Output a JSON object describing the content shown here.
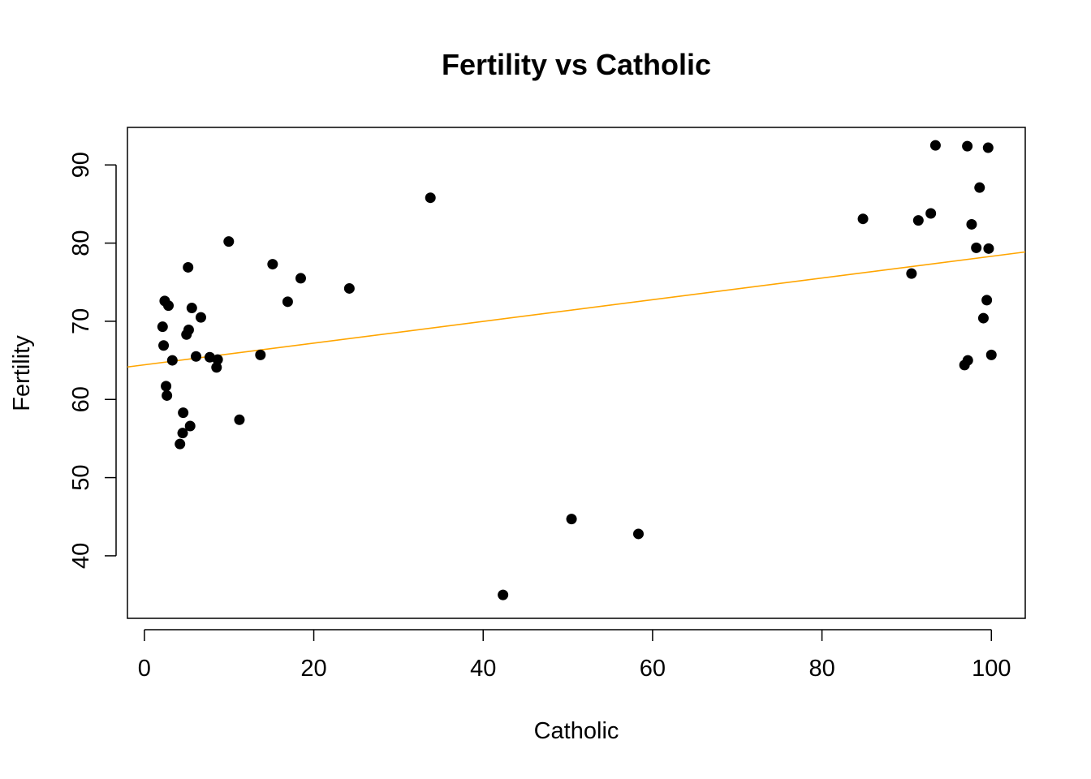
{
  "chart_data": {
    "type": "scatter",
    "title": "Fertility vs Catholic",
    "xlabel": "Catholic",
    "ylabel": "Fertility",
    "xlim": [
      -2.0,
      104.0
    ],
    "ylim": [
      32.0,
      94.8
    ],
    "xticks": [
      0,
      20,
      40,
      60,
      80,
      100
    ],
    "yticks": [
      40,
      50,
      60,
      70,
      80,
      90
    ],
    "grid": false,
    "point_color": "#000000",
    "fit_line": {
      "color": "#FFA500",
      "intercept": 64.43,
      "slope": 0.1388
    },
    "series": [
      {
        "points": [
          [
            9.96,
            80.2
          ],
          [
            84.84,
            83.1
          ],
          [
            93.4,
            92.5
          ],
          [
            33.77,
            85.8
          ],
          [
            5.16,
            76.9
          ],
          [
            90.57,
            76.1
          ],
          [
            92.85,
            83.8
          ],
          [
            97.16,
            92.4
          ],
          [
            97.67,
            82.4
          ],
          [
            91.38,
            82.9
          ],
          [
            98.61,
            87.1
          ],
          [
            8.52,
            64.1
          ],
          [
            2.27,
            66.9
          ],
          [
            5.23,
            68.9
          ],
          [
            2.56,
            61.7
          ],
          [
            4.97,
            68.3
          ],
          [
            5.6,
            71.7
          ],
          [
            4.52,
            55.7
          ],
          [
            4.2,
            54.3
          ],
          [
            8.65,
            65.1
          ],
          [
            6.1,
            65.5
          ],
          [
            3.3,
            65.0
          ],
          [
            5.4,
            56.6
          ],
          [
            11.22,
            57.4
          ],
          [
            16.92,
            72.5
          ],
          [
            24.2,
            74.2
          ],
          [
            2.84,
            72.0
          ],
          [
            2.66,
            60.5
          ],
          [
            4.58,
            58.3
          ],
          [
            7.72,
            65.4
          ],
          [
            18.46,
            75.5
          ],
          [
            2.15,
            69.3
          ],
          [
            15.14,
            77.3
          ],
          [
            6.67,
            70.5
          ],
          [
            98.22,
            79.4
          ],
          [
            97.22,
            65.0
          ],
          [
            99.62,
            92.2
          ],
          [
            99.68,
            79.3
          ],
          [
            99.06,
            70.4
          ],
          [
            100.0,
            65.7
          ],
          [
            99.46,
            72.7
          ],
          [
            96.83,
            64.4
          ],
          [
            42.34,
            35.0
          ],
          [
            50.43,
            44.7
          ],
          [
            58.33,
            42.8
          ],
          [
            2.4,
            72.6
          ],
          [
            13.7,
            65.7
          ]
        ]
      }
    ]
  }
}
